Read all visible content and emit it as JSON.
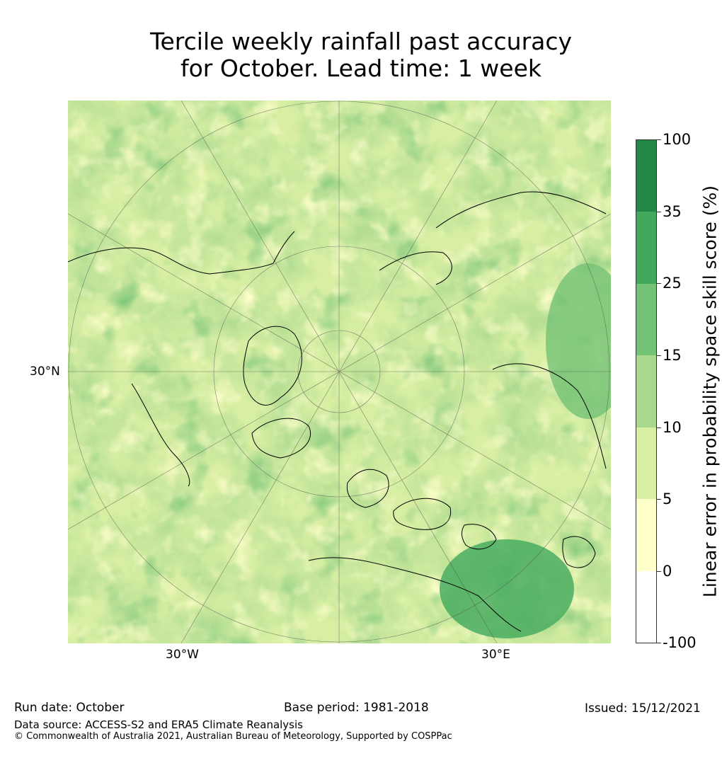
{
  "title_line1": "Tercile weekly rainfall past accuracy",
  "title_line2": "for October. Lead time: 1 week",
  "axis_labels": {
    "lat": "30°N",
    "lon_w": "30°W",
    "lon_e": "30°E"
  },
  "colorbar": {
    "label": "Linear error in probability space skill score (%)",
    "ticks": [
      "100",
      "35",
      "25",
      "15",
      "10",
      "5",
      "0",
      "-100"
    ],
    "colors": [
      "#218848",
      "#40a95c",
      "#74c275",
      "#a7d88d",
      "#d7eea3",
      "#ffffcc",
      "#ffffff"
    ]
  },
  "footer": {
    "run_date": "Run date: October",
    "base_period": "Base period: 1981-2018",
    "issued": "Issued: 15/12/2021",
    "data_source": "Data source: ACCESS-S2 and ERA5 Climate Reanalysis",
    "copyright": "© Commonwealth of Australia 2021, Australian Bureau of Meteorology, Supported by COSPPac"
  }
}
